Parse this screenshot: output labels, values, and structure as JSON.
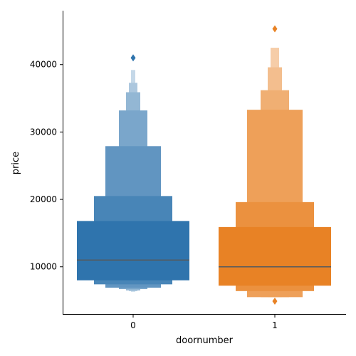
{
  "chart_data": {
    "type": "boxen",
    "xlabel": "doornumber",
    "ylabel": "price",
    "categories": [
      "0",
      "1"
    ],
    "yticks": [
      10000,
      20000,
      30000,
      40000
    ],
    "ylim": [
      3000,
      48000
    ],
    "grid": false,
    "legend": false,
    "series": [
      {
        "category": "0",
        "color": "#2f74ad",
        "median": 11000,
        "boxes": [
          {
            "low": 8000,
            "high": 16800
          },
          {
            "low": 7400,
            "high": 20500
          },
          {
            "low": 6900,
            "high": 27900
          },
          {
            "low": 6700,
            "high": 33200
          },
          {
            "low": 6500,
            "high": 35900
          },
          {
            "low": 6400,
            "high": 37300
          },
          {
            "low": 6300,
            "high": 39200
          }
        ],
        "outliers": [
          41000
        ]
      },
      {
        "category": "1",
        "color": "#e88225",
        "median": 10000,
        "boxes": [
          {
            "low": 7200,
            "high": 15900
          },
          {
            "low": 6400,
            "high": 19600
          },
          {
            "low": 5500,
            "high": 33300
          },
          {
            "low": 5500,
            "high": 36200
          },
          {
            "low": 5500,
            "high": 39600
          },
          {
            "low": 5500,
            "high": 42500
          }
        ],
        "outliers": [
          45300,
          4900
        ]
      }
    ]
  }
}
